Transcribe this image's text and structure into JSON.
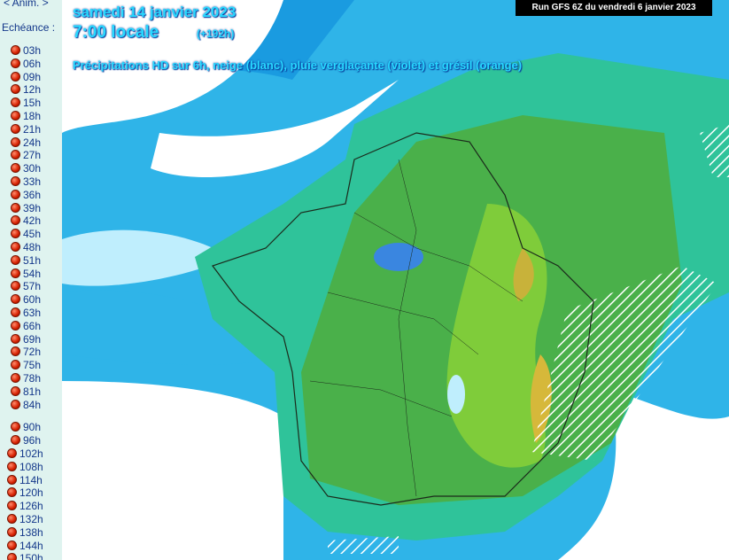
{
  "sidebar": {
    "anim_label": "< Anim. >",
    "echeance_label": "Echéance :",
    "hours": [
      "03h",
      "06h",
      "09h",
      "12h",
      "15h",
      "18h",
      "21h",
      "24h",
      "27h",
      "30h",
      "33h",
      "36h",
      "39h",
      "42h",
      "45h",
      "48h",
      "51h",
      "54h",
      "57h",
      "60h",
      "63h",
      "66h",
      "69h",
      "72h",
      "75h",
      "78h",
      "81h",
      "84h",
      "90h",
      "96h",
      "102h",
      "108h",
      "114h",
      "120h",
      "126h",
      "132h",
      "138h",
      "144h",
      "150h"
    ]
  },
  "map": {
    "date": "samedi 14 janvier 2023",
    "time": "7:00 locale",
    "offset": "(+192h)",
    "subtitle": "Précipitations HD sur 6h, neige (blanc), pluie verglaçante (violet) et grésil (orange)",
    "run": "Run GFS 6Z du vendredi 6 janvier 2023"
  }
}
